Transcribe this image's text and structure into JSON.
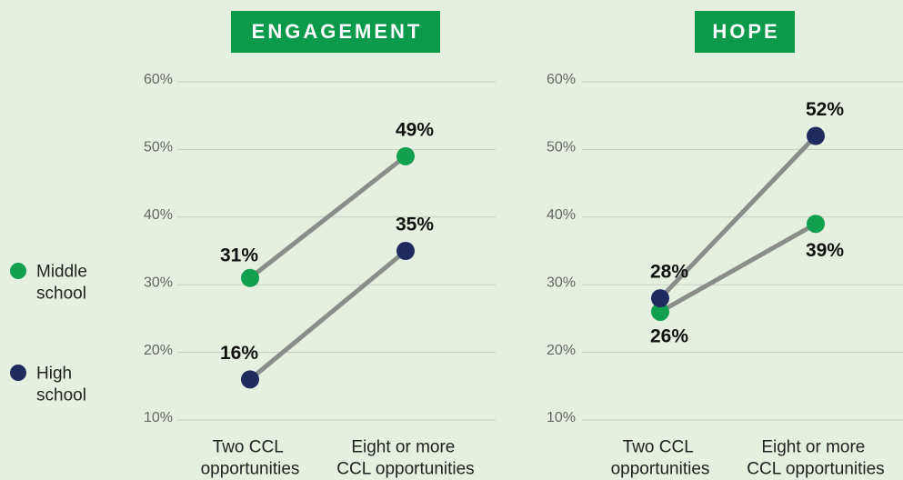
{
  "chart_data": [
    {
      "type": "line",
      "title": "ENGAGEMENT",
      "categories": [
        "Two CCL opportunities",
        "Eight or more CCL opportunities"
      ],
      "series": [
        {
          "name": "Middle school",
          "color": "#12a04f",
          "values": [
            31,
            49
          ],
          "value_labels": [
            "31%",
            "49%"
          ]
        },
        {
          "name": "High school",
          "color": "#1f2a5e",
          "values": [
            16,
            35
          ],
          "value_labels": [
            "16%",
            "35%"
          ]
        }
      ],
      "line_color": "#8a8d8a",
      "ylim": [
        10,
        60
      ],
      "yticks": [
        {
          "value": 10,
          "label": "10%"
        },
        {
          "value": 20,
          "label": "20%"
        },
        {
          "value": 30,
          "label": "30%"
        },
        {
          "value": 40,
          "label": "40%"
        },
        {
          "value": 50,
          "label": "50%"
        },
        {
          "value": 60,
          "label": "60%"
        }
      ],
      "grid": true,
      "legend": "left"
    },
    {
      "type": "line",
      "title": "HOPE",
      "categories": [
        "Two CCL opportunities",
        "Eight or more CCL opportunities"
      ],
      "series": [
        {
          "color": "#12a04f",
          "values": [
            26,
            39
          ],
          "value_labels": [
            "26%",
            "39%"
          ]
        },
        {
          "color": "#1f2a5e",
          "values": [
            28,
            52
          ],
          "value_labels": [
            "28%",
            "52%"
          ]
        }
      ],
      "line_color": "#8a8d8a",
      "ylim": [
        10,
        60
      ],
      "yticks": [
        {
          "value": 10,
          "label": "10%"
        },
        {
          "value": 20,
          "label": "20%"
        },
        {
          "value": 30,
          "label": "30%"
        },
        {
          "value": 40,
          "label": "40%"
        },
        {
          "value": 50,
          "label": "50%"
        },
        {
          "value": 60,
          "label": "60%"
        }
      ],
      "grid": true
    }
  ]
}
